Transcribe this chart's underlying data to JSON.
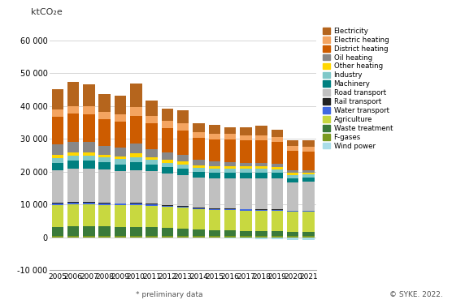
{
  "years": [
    2005,
    2006,
    2007,
    2008,
    2009,
    2010,
    2011,
    2012,
    2013,
    2014,
    2015,
    2016,
    2017,
    2018,
    2019,
    2020,
    2021
  ],
  "data": {
    "Electricity": [
      6200,
      7200,
      6800,
      5500,
      5500,
      7200,
      4700,
      3700,
      4000,
      2700,
      2600,
      2000,
      2500,
      2900,
      2300,
      1900,
      2000
    ],
    "Electric heating": [
      2200,
      2400,
      2400,
      2300,
      2200,
      2600,
      2200,
      2200,
      2200,
      1700,
      1700,
      1700,
      1600,
      1600,
      1600,
      1500,
      1400
    ],
    "District heating": [
      8500,
      8500,
      8500,
      8000,
      8000,
      8500,
      7700,
      7500,
      7300,
      6800,
      6800,
      6800,
      6700,
      6700,
      6500,
      5800,
      5700
    ],
    "Oil heating": [
      3200,
      3200,
      3100,
      2700,
      2700,
      3000,
      2500,
      2200,
      2100,
      1700,
      1500,
      1400,
      1200,
      1200,
      1100,
      900,
      800
    ],
    "Other heating": [
      900,
      1000,
      1000,
      900,
      900,
      1100,
      900,
      900,
      900,
      700,
      700,
      700,
      700,
      700,
      700,
      600,
      600
    ],
    "Industry": [
      1500,
      1500,
      1500,
      1500,
      1500,
      1500,
      1400,
      1300,
      1200,
      1200,
      1100,
      1100,
      1100,
      1100,
      1000,
      900,
      800
    ],
    "Machinery": [
      2300,
      2500,
      2500,
      2200,
      2100,
      2400,
      2100,
      2000,
      2000,
      1700,
      1700,
      1700,
      1700,
      1700,
      1700,
      1300,
      1400
    ],
    "Road transport": [
      10000,
      10200,
      10100,
      10100,
      9800,
      10000,
      9900,
      9600,
      9400,
      9200,
      9200,
      9300,
      9400,
      9500,
      9500,
      8600,
      8800
    ],
    "Rail transport": [
      200,
      200,
      200,
      200,
      200,
      200,
      200,
      200,
      200,
      200,
      200,
      200,
      200,
      200,
      200,
      150,
      150
    ],
    "Water transport": [
      500,
      550,
      550,
      500,
      450,
      500,
      450,
      400,
      350,
      350,
      300,
      300,
      300,
      300,
      300,
      200,
      250
    ],
    "Agriculture": [
      6500,
      6600,
      6600,
      6500,
      6500,
      6600,
      6400,
      6300,
      6300,
      6200,
      6200,
      6200,
      6200,
      6200,
      6200,
      6200,
      6200
    ],
    "Waste treatment": [
      2800,
      2900,
      2900,
      2800,
      2700,
      2700,
      2600,
      2400,
      2200,
      1800,
      1700,
      1600,
      1500,
      1400,
      1300,
      1200,
      1100
    ],
    "F-gases": [
      400,
      500,
      500,
      500,
      500,
      500,
      500,
      500,
      500,
      450,
      450,
      450,
      450,
      450,
      450,
      400,
      400
    ],
    "Wind power": [
      0,
      0,
      0,
      0,
      0,
      0,
      0,
      0,
      0,
      -100,
      -200,
      -300,
      -400,
      -600,
      -700,
      -800,
      -900
    ]
  },
  "stack_order": [
    "Wind power",
    "F-gases",
    "Waste treatment",
    "Agriculture",
    "Water transport",
    "Rail transport",
    "Road transport",
    "Machinery",
    "Industry",
    "Other heating",
    "Oil heating",
    "District heating",
    "Electric heating",
    "Electricity"
  ],
  "legend_order": [
    "Electricity",
    "Electric heating",
    "District heating",
    "Oil heating",
    "Other heating",
    "Industry",
    "Machinery",
    "Road transport",
    "Rail transport",
    "Water transport",
    "Agriculture",
    "Waste treatment",
    "F-gases",
    "Wind power"
  ],
  "colors": {
    "Electricity": "#b5651d",
    "Electric heating": "#f4a460",
    "District heating": "#cd5c00",
    "Oil heating": "#888888",
    "Other heating": "#ffd700",
    "Industry": "#7fc8c8",
    "Machinery": "#008080",
    "Road transport": "#c0c0c0",
    "Rail transport": "#222222",
    "Water transport": "#4169e1",
    "Agriculture": "#c8d840",
    "Waste treatment": "#3a7a3a",
    "F-gases": "#7a9a20",
    "Wind power": "#aadde8"
  },
  "ylim": [
    -10000,
    65000
  ],
  "yticks": [
    -10000,
    0,
    10000,
    20000,
    30000,
    40000,
    50000,
    60000
  ],
  "ytick_labels": [
    "-10 000",
    "0",
    "10 000",
    "20 000",
    "30 000",
    "40 000",
    "50 000",
    "60 000"
  ],
  "ylabel": "ktCO₂e",
  "background_color": "#ffffff",
  "grid_color": "#d0d0d0",
  "footnote_left": "* preliminary data",
  "footnote_right": "© SYKE. 2022."
}
